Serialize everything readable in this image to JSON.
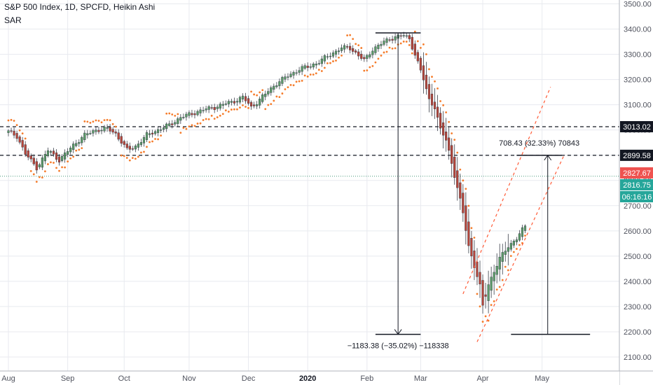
{
  "header": {
    "title": "S&P 500 Index, 1D, SPCFD, Heikin Ashi",
    "indicator": "SAR"
  },
  "colors": {
    "up": "#5b9a68",
    "down": "#b5453a",
    "sar": "#f57c2b",
    "grid": "#e8eaef",
    "axis_text": "#50535e",
    "hline": "#131722",
    "current_price_line": "#4a9a7a",
    "badge_red": "#ef5350",
    "badge_green": "#26a69a"
  },
  "chart_data": {
    "type": "candlestick",
    "ylim": [
      2070,
      3520
    ],
    "y_ticks": [
      2100,
      2200,
      2300,
      2400,
      2500,
      2600,
      2700,
      2800,
      2900,
      3000,
      3100,
      3200,
      3300,
      3400,
      3500
    ],
    "y_tick_labels": [
      "2100.00",
      "2200.00",
      "2300.00",
      "2400.00",
      "2500.00",
      "2600.00",
      "2700.00",
      "2800.00",
      "2900.00",
      "3000.00",
      "3100.00",
      "3200.00",
      "3300.00",
      "3400.00",
      "3500.00"
    ],
    "x_labels": [
      "Aug",
      "Sep",
      "Oct",
      "Nov",
      "Dec",
      "2020",
      "Feb",
      "Mar",
      "Apr",
      "May"
    ],
    "x_label_day_index": [
      0,
      21,
      41,
      64,
      85,
      106,
      127,
      146,
      168,
      189
    ],
    "horizontal_levels": [
      {
        "price": 3013.02,
        "label": "3013.02"
      },
      {
        "price": 2899.58,
        "label": "2899.58"
      }
    ],
    "price_badges": [
      {
        "price": 2827.67,
        "label": "2827.67",
        "color": "red"
      },
      {
        "price": 2816.75,
        "label": "2816.75",
        "color": "green"
      },
      {
        "price": 2783,
        "label": "06:16:16",
        "color": "green"
      }
    ],
    "current_price": 2816.75,
    "candles": [],
    "anchors": [
      [
        -2,
        3005
      ],
      [
        3,
        2975
      ],
      [
        6,
        2905
      ],
      [
        10,
        2850
      ],
      [
        14,
        2920
      ],
      [
        18,
        2880
      ],
      [
        23,
        2940
      ],
      [
        27,
        2980
      ],
      [
        31,
        3000
      ],
      [
        35,
        3005
      ],
      [
        38,
        2985
      ],
      [
        42,
        2920
      ],
      [
        45,
        2935
      ],
      [
        49,
        2980
      ],
      [
        53,
        3000
      ],
      [
        57,
        3020
      ],
      [
        61,
        3050
      ],
      [
        65,
        3065
      ],
      [
        69,
        3080
      ],
      [
        73,
        3090
      ],
      [
        77,
        3105
      ],
      [
        80,
        3115
      ],
      [
        83,
        3130
      ],
      [
        86,
        3090
      ],
      [
        89,
        3120
      ],
      [
        92,
        3155
      ],
      [
        95,
        3185
      ],
      [
        99,
        3215
      ],
      [
        103,
        3240
      ],
      [
        107,
        3255
      ],
      [
        110,
        3270
      ],
      [
        114,
        3300
      ],
      [
        118,
        3325
      ],
      [
        121,
        3325
      ],
      [
        124,
        3295
      ],
      [
        126,
        3275
      ],
      [
        129,
        3320
      ],
      [
        133,
        3350
      ],
      [
        137,
        3370
      ],
      [
        140,
        3375
      ],
      [
        142,
        3360
      ],
      [
        144,
        3300
      ],
      [
        147,
        3200
      ],
      [
        149,
        3120
      ],
      [
        151,
        3090
      ],
      [
        153,
        3000
      ],
      [
        155,
        2960
      ],
      [
        157,
        2870
      ],
      [
        159,
        2770
      ],
      [
        161,
        2670
      ],
      [
        163,
        2540
      ],
      [
        165,
        2460
      ],
      [
        167,
        2380
      ],
      [
        168,
        2300
      ],
      [
        170,
        2390
      ],
      [
        172,
        2440
      ],
      [
        174,
        2490
      ],
      [
        177,
        2540
      ],
      [
        180,
        2570
      ],
      [
        183,
        2620
      ],
      [
        186,
        2680
      ],
      [
        188,
        2760
      ],
      [
        190,
        2825
      ]
    ],
    "sar": {
      "segments": []
    },
    "measurements": [
      {
        "label": "−1183.38 (−35.02%) −118338",
        "from_price": 3385,
        "to_price": 2190
      },
      {
        "label": "708.43 (32.33%) 70843",
        "from_price": 2190,
        "to_price": 2899.58
      }
    ]
  }
}
